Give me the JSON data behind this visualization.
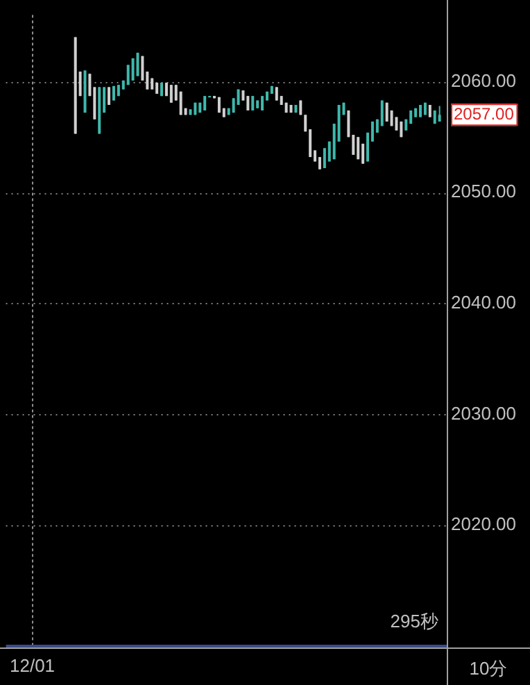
{
  "chart_data": {
    "type": "candlestick",
    "categories": [
      null,
      null,
      null,
      null,
      null,
      "12/01",
      null,
      null,
      null,
      null,
      null,
      null,
      null,
      null,
      null,
      null,
      null,
      null,
      null,
      null,
      null,
      null,
      null,
      null,
      null,
      null,
      null,
      null,
      null,
      null,
      null,
      null,
      null,
      null,
      null,
      null,
      null,
      null,
      null,
      null,
      null,
      null,
      null,
      null,
      null,
      null,
      null,
      null,
      null,
      null,
      null,
      null,
      null,
      null,
      null,
      null,
      null,
      null,
      null,
      null,
      null,
      null,
      null,
      null,
      null,
      null,
      null,
      null,
      null,
      null,
      null,
      null,
      null,
      null,
      null,
      null,
      null,
      null,
      null,
      null,
      null,
      null,
      null,
      null,
      null,
      null,
      null,
      null,
      null,
      null,
      null,
      null
    ],
    "ohlc": [
      null,
      null,
      null,
      null,
      null,
      null,
      null,
      null,
      null,
      null,
      null,
      null,
      null,
      null,
      [
        2064.0,
        2064.0,
        2055.3,
        2055.3
      ],
      [
        2060.9,
        2060.9,
        2058.7,
        2058.7
      ],
      [
        2057.2,
        2061.0,
        2057.2,
        2061.0
      ],
      [
        2060.7,
        2060.7,
        2058.7,
        2058.7
      ],
      [
        2059.5,
        2059.5,
        2056.6,
        2056.6
      ],
      [
        2055.3,
        2059.5,
        2055.3,
        2059.5
      ],
      [
        2057.2,
        2059.5,
        2057.2,
        2059.5
      ],
      [
        2059.5,
        2059.5,
        2057.9,
        2057.9
      ],
      [
        2058.3,
        2059.6,
        2058.3,
        2059.6
      ],
      [
        2058.7,
        2059.7,
        2058.7,
        2059.7
      ],
      [
        2059.3,
        2060.1,
        2059.3,
        2060.1
      ],
      [
        2059.7,
        2061.5,
        2059.7,
        2061.5
      ],
      [
        2060.1,
        2062.1,
        2060.1,
        2062.1
      ],
      [
        2060.5,
        2062.6,
        2060.5,
        2062.6
      ],
      [
        2062.3,
        2062.3,
        2060.1,
        2060.1
      ],
      [
        2060.9,
        2060.9,
        2059.3,
        2059.3
      ],
      [
        2060.3,
        2060.3,
        2059.3,
        2059.3
      ],
      [
        2059.9,
        2059.9,
        2058.9,
        2058.9
      ],
      [
        2058.7,
        2059.9,
        2058.7,
        2059.9
      ],
      [
        2059.9,
        2059.9,
        2058.7,
        2058.7
      ],
      [
        2059.7,
        2059.7,
        2058.1,
        2058.1
      ],
      [
        2059.7,
        2059.7,
        2058.3,
        2058.3
      ],
      [
        2059.1,
        2059.1,
        2057.0,
        2057.0
      ],
      [
        2057.6,
        2057.6,
        2057.0,
        2057.0
      ],
      [
        2057.0,
        2057.5,
        2057.0,
        2057.5
      ],
      [
        2057.0,
        2058.1,
        2057.0,
        2058.1
      ],
      [
        2057.2,
        2058.1,
        2057.2,
        2058.1
      ],
      [
        2057.4,
        2058.7,
        2057.4,
        2058.7
      ],
      [
        2058.6,
        2058.7,
        2058.6,
        2058.7
      ],
      [
        2058.7,
        2058.7,
        2058.5,
        2058.5
      ],
      [
        2058.6,
        2058.6,
        2057.2,
        2057.2
      ],
      [
        2057.6,
        2057.6,
        2056.8,
        2056.8
      ],
      [
        2057.0,
        2057.6,
        2057.0,
        2057.6
      ],
      [
        2057.2,
        2058.5,
        2057.2,
        2058.5
      ],
      [
        2057.9,
        2059.3,
        2057.9,
        2059.3
      ],
      [
        2059.2,
        2059.2,
        2058.3,
        2058.3
      ],
      [
        2058.7,
        2058.7,
        2057.4,
        2057.4
      ],
      [
        2057.4,
        2058.7,
        2057.4,
        2058.7
      ],
      [
        2057.6,
        2058.3,
        2057.6,
        2058.3
      ],
      [
        2057.4,
        2058.7,
        2057.4,
        2058.7
      ],
      [
        2058.3,
        2059.1,
        2058.3,
        2059.1
      ],
      [
        2058.9,
        2059.6,
        2058.9,
        2059.6
      ],
      [
        2059.5,
        2059.5,
        2058.3,
        2058.3
      ],
      [
        2058.7,
        2058.7,
        2057.9,
        2057.9
      ],
      [
        2058.1,
        2058.1,
        2057.2,
        2057.2
      ],
      [
        2057.9,
        2057.9,
        2057.2,
        2057.2
      ],
      [
        2057.2,
        2057.9,
        2057.2,
        2057.9
      ],
      [
        2058.3,
        2058.3,
        2057.0,
        2057.0
      ],
      [
        2057.0,
        2057.0,
        2055.5,
        2055.5
      ],
      [
        2055.7,
        2055.7,
        2053.2,
        2053.2
      ],
      [
        2053.8,
        2053.8,
        2052.8,
        2052.8
      ],
      [
        2053.2,
        2053.2,
        2052.1,
        2052.1
      ],
      [
        2052.2,
        2054.0,
        2052.2,
        2054.0
      ],
      [
        2052.8,
        2054.6,
        2052.8,
        2054.6
      ],
      [
        2053.0,
        2056.2,
        2053.0,
        2056.2
      ],
      [
        2054.6,
        2057.9,
        2054.6,
        2057.9
      ],
      [
        2057.0,
        2058.1,
        2057.0,
        2058.1
      ],
      [
        2057.4,
        2057.4,
        2055.0,
        2055.0
      ],
      [
        2055.2,
        2055.2,
        2053.4,
        2053.4
      ],
      [
        2055.0,
        2055.0,
        2053.0,
        2053.0
      ],
      [
        2054.4,
        2054.4,
        2052.6,
        2052.6
      ],
      [
        2052.8,
        2055.4,
        2052.8,
        2055.4
      ],
      [
        2054.6,
        2056.4,
        2054.6,
        2056.4
      ],
      [
        2055.4,
        2056.6,
        2055.4,
        2056.6
      ],
      [
        2056.0,
        2058.3,
        2056.0,
        2058.3
      ],
      [
        2058.1,
        2058.1,
        2056.4,
        2056.4
      ],
      [
        2057.4,
        2057.4,
        2056.0,
        2056.0
      ],
      [
        2056.8,
        2056.8,
        2055.6,
        2055.6
      ],
      [
        2056.4,
        2056.4,
        2055.0,
        2055.0
      ],
      [
        2055.6,
        2056.6,
        2055.6,
        2056.6
      ],
      [
        2056.2,
        2057.4,
        2056.2,
        2057.4
      ],
      [
        2056.8,
        2057.6,
        2056.8,
        2057.6
      ],
      [
        2056.8,
        2057.9,
        2056.8,
        2057.9
      ],
      [
        2057.0,
        2058.1,
        2057.0,
        2058.1
      ],
      [
        2057.9,
        2057.9,
        2056.8,
        2056.8
      ],
      [
        2056.2,
        2057.4,
        2056.2,
        2057.4
      ],
      [
        2056.4,
        2057.8,
        2056.4,
        2057.0
      ],
      null
    ],
    "colors": [
      null,
      null,
      null,
      null,
      null,
      null,
      null,
      null,
      null,
      null,
      null,
      null,
      null,
      null,
      "#d0d0d0",
      "#d0d0d0",
      "#3fb8ac",
      "#d0d0d0",
      "#d0d0d0",
      "#3fb8ac",
      "#3fb8ac",
      "#d0d0d0",
      "#3fb8ac",
      "#3fb8ac",
      "#3fb8ac",
      "#3fb8ac",
      "#3fb8ac",
      "#3fb8ac",
      "#d0d0d0",
      "#d0d0d0",
      "#d0d0d0",
      "#d0d0d0",
      "#3fb8ac",
      "#d0d0d0",
      "#d0d0d0",
      "#d0d0d0",
      "#d0d0d0",
      "#d0d0d0",
      "#3fb8ac",
      "#3fb8ac",
      "#3fb8ac",
      "#3fb8ac",
      "#3fb8ac",
      "#d0d0d0",
      "#d0d0d0",
      "#d0d0d0",
      "#3fb8ac",
      "#3fb8ac",
      "#3fb8ac",
      "#d0d0d0",
      "#d0d0d0",
      "#3fb8ac",
      "#3fb8ac",
      "#3fb8ac",
      "#3fb8ac",
      "#3fb8ac",
      "#d0d0d0",
      "#d0d0d0",
      "#d0d0d0",
      "#d0d0d0",
      "#3fb8ac",
      "#d0d0d0",
      "#d0d0d0",
      "#d0d0d0",
      "#d0d0d0",
      "#d0d0d0",
      "#3fb8ac",
      "#3fb8ac",
      "#3fb8ac",
      "#3fb8ac",
      "#3fb8ac",
      "#d0d0d0",
      "#d0d0d0",
      "#d0d0d0",
      "#d0d0d0",
      "#3fb8ac",
      "#3fb8ac",
      "#3fb8ac",
      "#3fb8ac",
      "#d0d0d0",
      "#d0d0d0",
      "#d0d0d0",
      "#d0d0d0",
      "#3fb8ac",
      "#3fb8ac",
      "#3fb8ac",
      "#3fb8ac",
      "#3fb8ac",
      "#d0d0d0",
      "#3fb8ac",
      "#3fb8ac",
      null
    ],
    "ylim": [
      2009,
      2066
    ],
    "yticks": [
      {
        "value": 2020,
        "label": "2020.00"
      },
      {
        "value": 2030,
        "label": "2030.00"
      },
      {
        "value": 2040,
        "label": "2040.00"
      },
      {
        "value": 2050,
        "label": "2050.00"
      },
      {
        "value": 2060,
        "label": "2060.00"
      }
    ],
    "grid": "y",
    "ref_lines": [
      {
        "axis": "x",
        "value": "12/01",
        "line_style": "dotted",
        "color": "#909090"
      }
    ],
    "annotations": [
      "2057.00",
      "295秒",
      "10分"
    ]
  }
}
